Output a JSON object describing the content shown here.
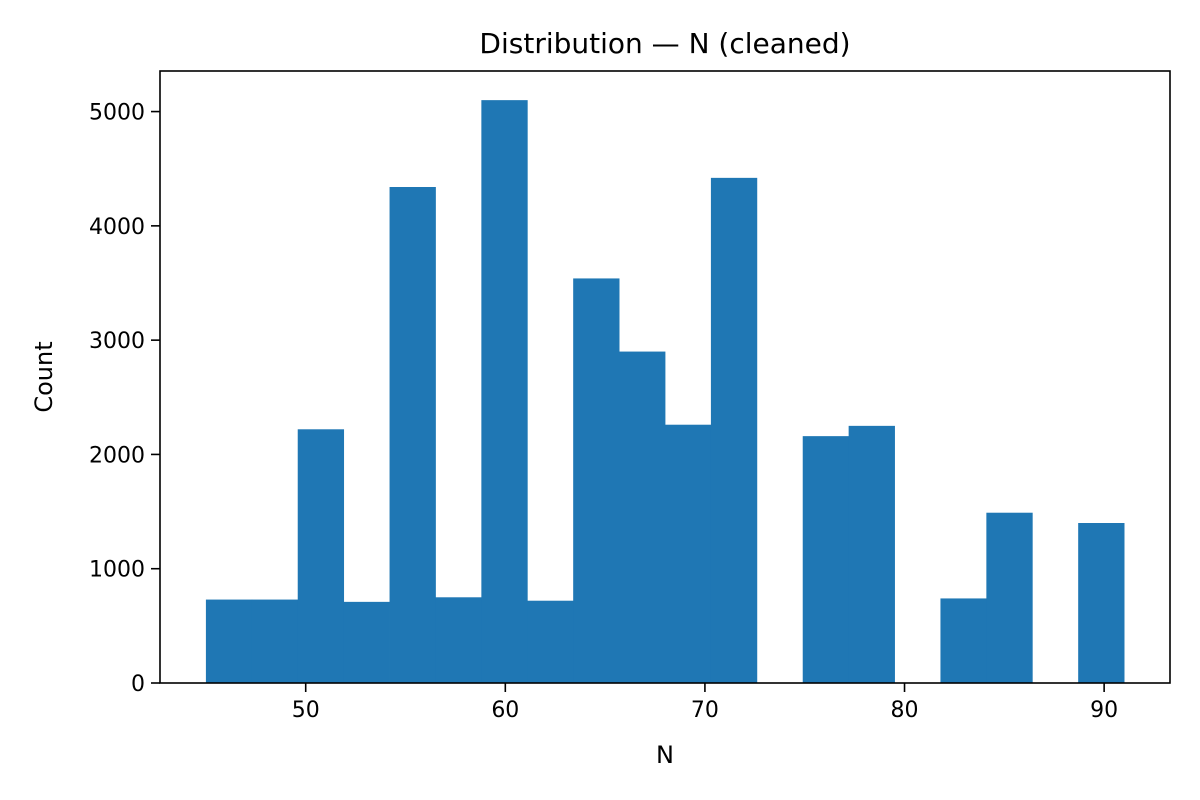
{
  "chart_data": {
    "type": "bar",
    "title": "Distribution — N (cleaned)",
    "xlabel": "N",
    "ylabel": "Count",
    "bar_color": "#1f77b4",
    "xlim": [
      42.7,
      93.3
    ],
    "ylim": [
      0,
      5355
    ],
    "xticks": [
      50,
      60,
      70,
      80,
      90
    ],
    "yticks": [
      0,
      1000,
      2000,
      3000,
      4000,
      5000
    ],
    "grid": false,
    "legend": "none",
    "bins": [
      {
        "x0": 45.0,
        "x1": 47.3,
        "count": 730
      },
      {
        "x0": 47.3,
        "x1": 49.6,
        "count": 730
      },
      {
        "x0": 49.6,
        "x1": 51.9,
        "count": 2220
      },
      {
        "x0": 51.9,
        "x1": 54.2,
        "count": 710
      },
      {
        "x0": 54.2,
        "x1": 56.5,
        "count": 4340
      },
      {
        "x0": 56.5,
        "x1": 58.8,
        "count": 750
      },
      {
        "x0": 58.8,
        "x1": 61.1,
        "count": 5100
      },
      {
        "x0": 61.1,
        "x1": 63.4,
        "count": 720
      },
      {
        "x0": 63.4,
        "x1": 65.7,
        "count": 3540
      },
      {
        "x0": 65.7,
        "x1": 68.0,
        "count": 2900
      },
      {
        "x0": 68.0,
        "x1": 70.3,
        "count": 2260
      },
      {
        "x0": 70.3,
        "x1": 72.6,
        "count": 4420
      },
      {
        "x0": 72.6,
        "x1": 74.9,
        "count": 0
      },
      {
        "x0": 74.9,
        "x1": 77.2,
        "count": 2160
      },
      {
        "x0": 77.2,
        "x1": 79.5,
        "count": 2250
      },
      {
        "x0": 79.5,
        "x1": 81.8,
        "count": 0
      },
      {
        "x0": 81.8,
        "x1": 84.1,
        "count": 740
      },
      {
        "x0": 84.1,
        "x1": 86.4,
        "count": 1490
      },
      {
        "x0": 86.4,
        "x1": 88.7,
        "count": 0
      },
      {
        "x0": 88.7,
        "x1": 91.0,
        "count": 1400
      }
    ]
  }
}
